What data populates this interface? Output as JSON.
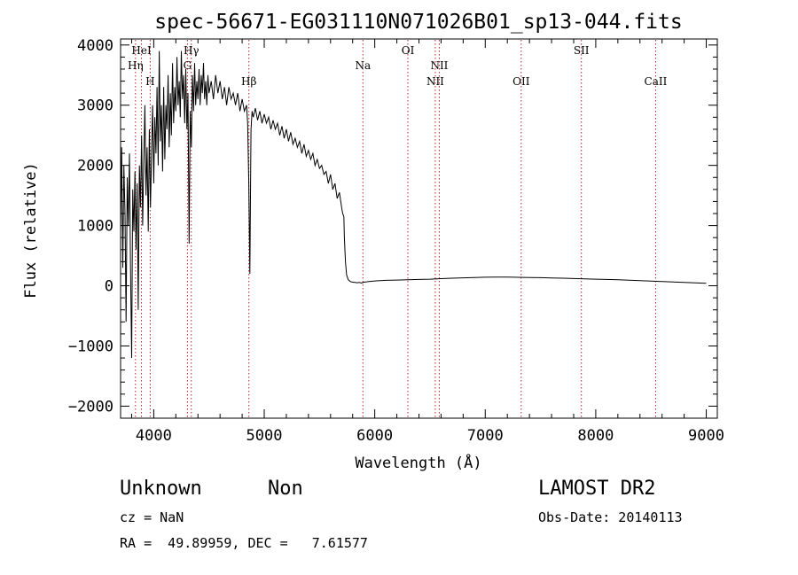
{
  "chart_data": {
    "type": "line",
    "title": "spec-56671-EG031110N071026B01_sp13-044.fits",
    "xlabel": "Wavelength (Å)",
    "ylabel": "Flux (relative)",
    "xlim": [
      3700,
      9100
    ],
    "ylim": [
      -2200,
      4100
    ],
    "xticks": [
      4000,
      5000,
      6000,
      7000,
      8000,
      9000
    ],
    "yticks": [
      -2000,
      -1000,
      0,
      1000,
      2000,
      3000,
      4000
    ],
    "ytick_labels": [
      "−2000",
      "−1000",
      "0",
      "1000",
      "2000",
      "3000",
      "4000"
    ],
    "line_color": "#000000",
    "marker_color": "#b22222",
    "lines": [
      {
        "label": "HeI",
        "x": 3889,
        "row": 0
      },
      {
        "label": "Hη",
        "x": 3835,
        "row": 1
      },
      {
        "label": "H",
        "x": 3968,
        "row": 2
      },
      {
        "label": "Hγ",
        "x": 4340,
        "row": 0
      },
      {
        "label": "G",
        "x": 4305,
        "row": 1
      },
      {
        "label": "Hβ",
        "x": 4861,
        "row": 2
      },
      {
        "label": "Na",
        "x": 5893,
        "row": 1
      },
      {
        "label": "OI",
        "x": 6300,
        "row": 0
      },
      {
        "label": "NII",
        "x": 6584,
        "row": 1
      },
      {
        "label": "NII",
        "x": 6548,
        "row": 2
      },
      {
        "label": "OII",
        "x": 7325,
        "row": 2
      },
      {
        "label": "SII",
        "x": 7870,
        "row": 0
      },
      {
        "label": "CaII",
        "x": 8542,
        "row": 2
      }
    ],
    "spectrum": [
      [
        3700,
        900
      ],
      [
        3710,
        2300
      ],
      [
        3720,
        300
      ],
      [
        3730,
        2000
      ],
      [
        3740,
        1200
      ],
      [
        3750,
        -600
      ],
      [
        3760,
        1800
      ],
      [
        3770,
        1000
      ],
      [
        3780,
        2200
      ],
      [
        3790,
        300
      ],
      [
        3800,
        -1200
      ],
      [
        3810,
        1600
      ],
      [
        3820,
        900
      ],
      [
        3830,
        1900
      ],
      [
        3840,
        600
      ],
      [
        3850,
        1700
      ],
      [
        3860,
        -400
      ],
      [
        3870,
        2000
      ],
      [
        3880,
        1300
      ],
      [
        3890,
        2500
      ],
      [
        3900,
        1000
      ],
      [
        3910,
        2100
      ],
      [
        3920,
        3000
      ],
      [
        3930,
        1500
      ],
      [
        3940,
        2300
      ],
      [
        3950,
        900
      ],
      [
        3960,
        2600
      ],
      [
        3970,
        1300
      ],
      [
        3980,
        2200
      ],
      [
        3990,
        3000
      ],
      [
        4000,
        1700
      ],
      [
        4010,
        2800
      ],
      [
        4020,
        2200
      ],
      [
        4030,
        3300
      ],
      [
        4040,
        2000
      ],
      [
        4050,
        3900
      ],
      [
        4060,
        2400
      ],
      [
        4070,
        3000
      ],
      [
        4080,
        1900
      ],
      [
        4090,
        3300
      ],
      [
        4100,
        2100
      ],
      [
        4110,
        3000
      ],
      [
        4120,
        2600
      ],
      [
        4130,
        3500
      ],
      [
        4140,
        2300
      ],
      [
        4150,
        3200
      ],
      [
        4160,
        2500
      ],
      [
        4170,
        3700
      ],
      [
        4180,
        2700
      ],
      [
        4190,
        3300
      ],
      [
        4200,
        2900
      ],
      [
        4210,
        3800
      ],
      [
        4220,
        3000
      ],
      [
        4230,
        3400
      ],
      [
        4240,
        2800
      ],
      [
        4250,
        3900
      ],
      [
        4260,
        3100
      ],
      [
        4270,
        3500
      ],
      [
        4280,
        2700
      ],
      [
        4290,
        3600
      ],
      [
        4300,
        2600
      ],
      [
        4310,
        3200
      ],
      [
        4320,
        700
      ],
      [
        4330,
        2900
      ],
      [
        4340,
        2300
      ],
      [
        4350,
        3500
      ],
      [
        4360,
        2900
      ],
      [
        4370,
        3700
      ],
      [
        4380,
        3000
      ],
      [
        4390,
        3400
      ],
      [
        4400,
        3100
      ],
      [
        4410,
        3600
      ],
      [
        4420,
        3000
      ],
      [
        4430,
        3500
      ],
      [
        4440,
        3200
      ],
      [
        4450,
        3700
      ],
      [
        4460,
        3100
      ],
      [
        4470,
        3400
      ],
      [
        4480,
        3000
      ],
      [
        4490,
        3500
      ],
      [
        4500,
        3200
      ],
      [
        4520,
        3400
      ],
      [
        4540,
        3100
      ],
      [
        4560,
        3500
      ],
      [
        4580,
        3200
      ],
      [
        4600,
        3400
      ],
      [
        4620,
        3100
      ],
      [
        4640,
        3300
      ],
      [
        4660,
        3000
      ],
      [
        4680,
        3300
      ],
      [
        4700,
        3100
      ],
      [
        4720,
        3200
      ],
      [
        4740,
        3000
      ],
      [
        4760,
        3200
      ],
      [
        4780,
        2900
      ],
      [
        4800,
        3100
      ],
      [
        4820,
        2900
      ],
      [
        4840,
        3000
      ],
      [
        4850,
        2700
      ],
      [
        4860,
        1700
      ],
      [
        4870,
        200
      ],
      [
        4880,
        2600
      ],
      [
        4890,
        2900
      ],
      [
        4900,
        2800
      ],
      [
        4920,
        2950
      ],
      [
        4940,
        2750
      ],
      [
        4960,
        2900
      ],
      [
        4980,
        2700
      ],
      [
        5000,
        2850
      ],
      [
        5020,
        2700
      ],
      [
        5040,
        2800
      ],
      [
        5060,
        2600
      ],
      [
        5080,
        2750
      ],
      [
        5100,
        2600
      ],
      [
        5120,
        2700
      ],
      [
        5140,
        2500
      ],
      [
        5160,
        2650
      ],
      [
        5180,
        2450
      ],
      [
        5200,
        2600
      ],
      [
        5220,
        2400
      ],
      [
        5240,
        2550
      ],
      [
        5260,
        2350
      ],
      [
        5280,
        2450
      ],
      [
        5300,
        2300
      ],
      [
        5320,
        2400
      ],
      [
        5340,
        2200
      ],
      [
        5360,
        2350
      ],
      [
        5380,
        2150
      ],
      [
        5400,
        2250
      ],
      [
        5420,
        2100
      ],
      [
        5440,
        2200
      ],
      [
        5460,
        2000
      ],
      [
        5480,
        2100
      ],
      [
        5500,
        1950
      ],
      [
        5520,
        2000
      ],
      [
        5540,
        1850
      ],
      [
        5560,
        1900
      ],
      [
        5580,
        1700
      ],
      [
        5600,
        1850
      ],
      [
        5620,
        1600
      ],
      [
        5640,
        1700
      ],
      [
        5660,
        1450
      ],
      [
        5680,
        1550
      ],
      [
        5700,
        1300
      ],
      [
        5710,
        1200
      ],
      [
        5720,
        1150
      ],
      [
        5725,
        800
      ],
      [
        5735,
        400
      ],
      [
        5745,
        180
      ],
      [
        5760,
        100
      ],
      [
        5780,
        70
      ],
      [
        5800,
        60
      ],
      [
        5820,
        55
      ],
      [
        5840,
        50
      ],
      [
        5860,
        55
      ],
      [
        5880,
        45
      ],
      [
        5900,
        60
      ],
      [
        5950,
        70
      ],
      [
        6000,
        80
      ],
      [
        6100,
        90
      ],
      [
        6200,
        95
      ],
      [
        6300,
        100
      ],
      [
        6400,
        105
      ],
      [
        6500,
        110
      ],
      [
        6600,
        118
      ],
      [
        6700,
        125
      ],
      [
        6800,
        132
      ],
      [
        6900,
        138
      ],
      [
        7000,
        142
      ],
      [
        7100,
        145
      ],
      [
        7200,
        143
      ],
      [
        7300,
        140
      ],
      [
        7400,
        138
      ],
      [
        7500,
        135
      ],
      [
        7600,
        130
      ],
      [
        7700,
        125
      ],
      [
        7800,
        120
      ],
      [
        7900,
        115
      ],
      [
        8000,
        110
      ],
      [
        8100,
        105
      ],
      [
        8200,
        100
      ],
      [
        8300,
        92
      ],
      [
        8400,
        85
      ],
      [
        8500,
        78
      ],
      [
        8600,
        70
      ],
      [
        8700,
        63
      ],
      [
        8800,
        55
      ],
      [
        8900,
        48
      ],
      [
        9000,
        40
      ]
    ]
  },
  "info": {
    "class_label": "Unknown",
    "subclass_label": "Non",
    "survey": "LAMOST DR2",
    "cz": "cz = NaN",
    "obs_date": "Obs-Date: 20140113",
    "coords": "RA =  49.89959, DEC =   7.61577"
  }
}
